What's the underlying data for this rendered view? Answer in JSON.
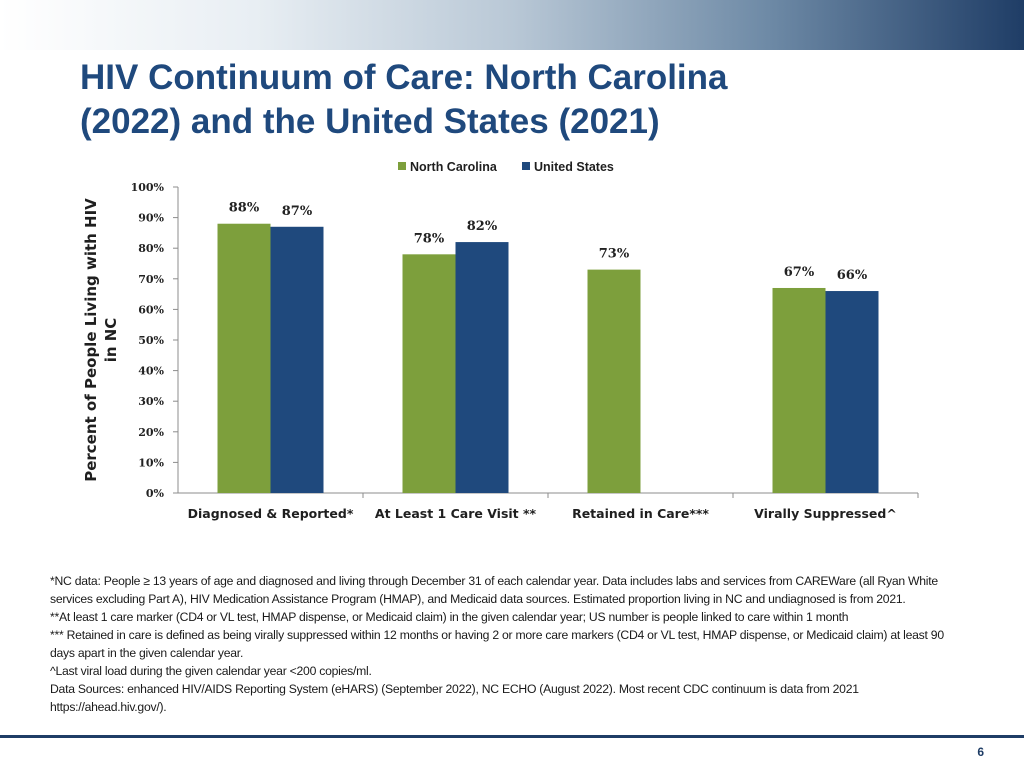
{
  "title": {
    "line1": "HIV Continuum of Care: North Carolina",
    "line2": "(2022) and the United States (2021)"
  },
  "colors": {
    "north_carolina": "#7d9f3c",
    "united_states": "#1f497d",
    "title": "#1f497d"
  },
  "chart_data": {
    "type": "bar",
    "title": "",
    "categories": [
      "Diagnosed & Reported*",
      "At Least 1 Care Visit **",
      "Retained in Care***",
      "Virally Suppressed^"
    ],
    "series": [
      {
        "name": "North Carolina",
        "values": [
          88,
          78,
          73,
          67
        ],
        "labels": [
          "88%",
          "78%",
          "73%",
          "67%"
        ]
      },
      {
        "name": "United States",
        "values": [
          87,
          82,
          null,
          66
        ],
        "labels": [
          "87%",
          "82%",
          "",
          "66%"
        ]
      }
    ],
    "xlabel": "",
    "ylabel": "Percent of People Living with HIV in NC",
    "ylim": [
      0,
      100
    ],
    "yticks": [
      "0%",
      "10%",
      "20%",
      "30%",
      "40%",
      "50%",
      "60%",
      "70%",
      "80%",
      "90%",
      "100%"
    ],
    "legend": "top-center",
    "grid": false
  },
  "footnotes": [
    "*NC data: People ≥ 13 years of age and diagnosed and living through December 31 of each calendar year. Data includes labs and services from CAREWare (all Ryan White services excluding Part A), HIV Medication Assistance Program (HMAP), and Medicaid data sources. Estimated proportion living in NC and undiagnosed is from 2021.",
    "**At least 1 care marker (CD4 or VL test, HMAP dispense, or Medicaid claim) in the given calendar year; US number is people linked to care within 1 month",
    "*** Retained in care is defined as being virally suppressed within 12 months or having 2 or more care markers (CD4 or VL test, HMAP dispense, or Medicaid claim) at least 90 days apart in the given calendar year.",
    "^Last viral load during the given calendar year <200 copies/ml.",
    "Data Sources: enhanced HIV/AIDS Reporting System (eHARS) (September 2022), NC ECHO (August 2022). Most recent CDC continuum is data from 2021 https://ahead.hiv.gov/)."
  ],
  "page_number": "6"
}
